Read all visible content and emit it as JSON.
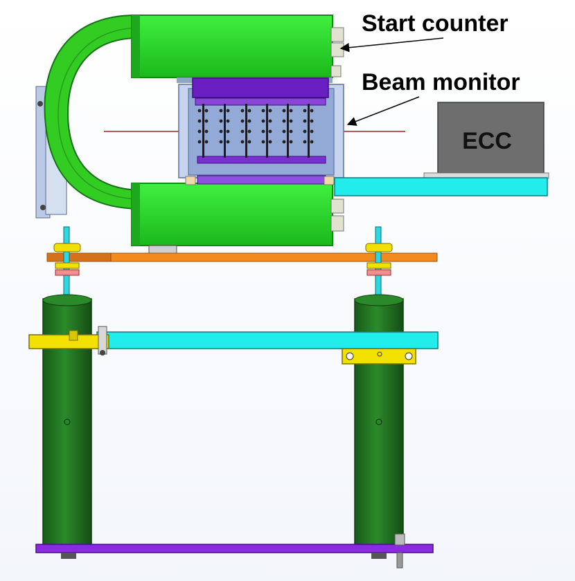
{
  "labels": {
    "start_counter": "Start counter",
    "beam_monitor": "Beam monitor",
    "ecc": "ECC"
  },
  "colors": {
    "magnet_green": "#22dd22",
    "magnet_green_dark": "#11a311",
    "yoke_green": "#33cc22",
    "column_green": "#1f6e1f",
    "monitor_body": "#93a9d6",
    "monitor_purple": "#6a1fc2",
    "ecc_gray": "#6e6e6e",
    "rail_cyan": "#22ecec",
    "plate_orange": "#f28a1e",
    "base_purple": "#8a2be2",
    "clamp_yellow": "#f2e000",
    "beam_line": "#a02020"
  }
}
